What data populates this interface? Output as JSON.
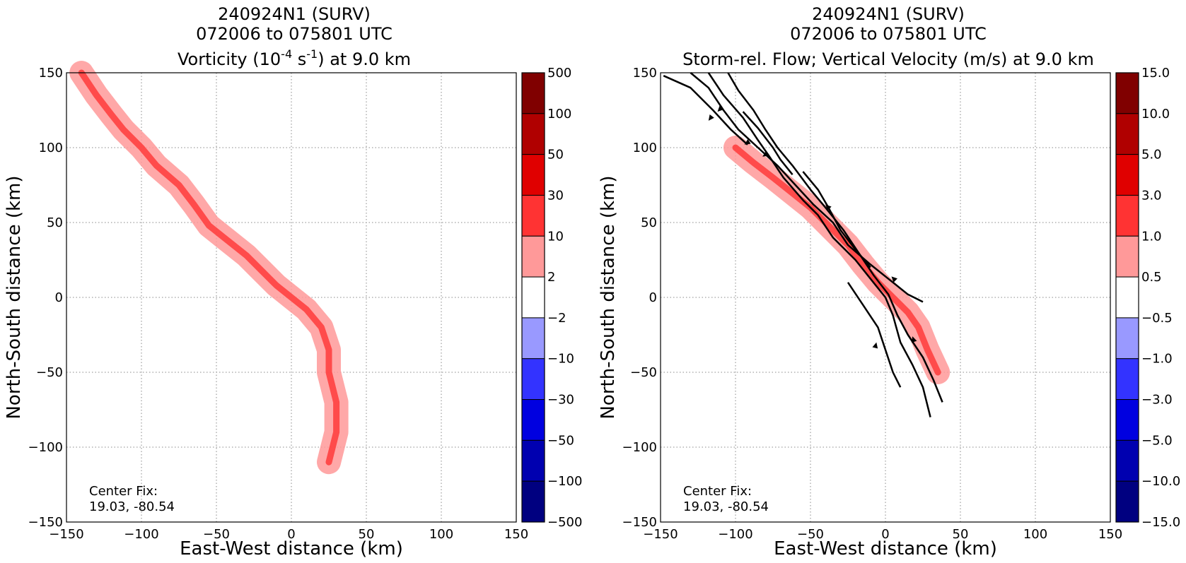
{
  "chart_data": [
    {
      "type": "heatmap",
      "title_lines": [
        "240924N1 (SURV)",
        "072006 to 075801 UTC"
      ],
      "title_var": {
        "prefix": "Vorticity (10",
        "exp1": "-4",
        "mid": " s",
        "exp2": "-1",
        "suffix": ") at 9.0 km"
      },
      "xlabel": "East-West distance (km)",
      "ylabel": "North-South distance (km)",
      "xlim": [
        -150,
        150
      ],
      "ylim": [
        -150,
        150
      ],
      "xticks": [
        "−150",
        "−100",
        "−50",
        "0",
        "50",
        "100",
        "150"
      ],
      "yticks": [
        "−150",
        "−100",
        "−50",
        "0",
        "50",
        "100",
        "150"
      ],
      "grid": true,
      "annotation": [
        "Center Fix:",
        "19.03, -80.54"
      ],
      "colorbar": {
        "labels": [
          "500",
          "100",
          "50",
          "30",
          "10",
          "2",
          "−2",
          "−10",
          "−30",
          "−50",
          "−100",
          "−500"
        ],
        "colors": [
          "#800000",
          "#b00000",
          "#e00000",
          "#ff3333",
          "#ff9999",
          "#ffffff",
          "#9999ff",
          "#3333ff",
          "#0000e0",
          "#0000b0",
          "#000080"
        ]
      },
      "features": [
        {
          "level": 1,
          "points": [
            [
              -140,
              150
            ],
            [
              -130,
              135
            ],
            [
              -120,
              122
            ],
            [
              -112,
              112
            ],
            [
              -100,
              100
            ],
            [
              -90,
              88
            ],
            [
              -75,
              75
            ],
            [
              -65,
              62
            ],
            [
              -55,
              48
            ],
            [
              -45,
              40
            ],
            [
              -30,
              28
            ],
            [
              -20,
              18
            ],
            [
              -10,
              8
            ],
            [
              0,
              0
            ],
            [
              10,
              -8
            ],
            [
              20,
              -20
            ],
            [
              25,
              -35
            ],
            [
              25,
              -50
            ],
            [
              30,
              -70
            ],
            [
              30,
              -90
            ],
            [
              25,
              -110
            ]
          ]
        }
      ]
    },
    {
      "type": "heatmap",
      "title_lines": [
        "240924N1 (SURV)",
        "072006 to 075801 UTC"
      ],
      "title_var_text": "Storm-rel. Flow; Vertical Velocity (m/s) at 9.0 km",
      "xlabel": "East-West distance (km)",
      "ylabel": "North-South distance (km)",
      "xlim": [
        -150,
        150
      ],
      "ylim": [
        -150,
        150
      ],
      "xticks": [
        "−150",
        "−100",
        "−50",
        "0",
        "50",
        "100",
        "150"
      ],
      "yticks": [
        "−150",
        "−100",
        "−50",
        "0",
        "50",
        "100",
        "150"
      ],
      "grid": true,
      "annotation": [
        "Center Fix:",
        "19.03, -80.54"
      ],
      "colorbar": {
        "labels": [
          "15.0",
          "10.0",
          "5.0",
          "3.0",
          "1.0",
          "0.5",
          "−0.5",
          "−1.0",
          "−3.0",
          "−5.0",
          "−10.0",
          "−15.0"
        ],
        "colors": [
          "#800000",
          "#b00000",
          "#e00000",
          "#ff3333",
          "#ff9999",
          "#ffffff",
          "#9999ff",
          "#3333ff",
          "#0000e0",
          "#0000b0",
          "#000080"
        ]
      },
      "streamlines": [
        [
          [
            -148,
            148
          ],
          [
            -130,
            140
          ],
          [
            -115,
            125
          ],
          [
            -103,
            112
          ],
          [
            -92,
            102
          ]
        ],
        [
          [
            -130,
            150
          ],
          [
            -118,
            140
          ],
          [
            -108,
            125
          ],
          [
            -98,
            112
          ],
          [
            -85,
            100
          ],
          [
            -72,
            88
          ],
          [
            -60,
            75
          ],
          [
            -48,
            62
          ],
          [
            -35,
            50
          ],
          [
            -25,
            35
          ],
          [
            -10,
            22
          ],
          [
            5,
            10
          ],
          [
            15,
            2
          ],
          [
            25,
            -3
          ]
        ],
        [
          [
            -118,
            150
          ],
          [
            -108,
            135
          ],
          [
            -95,
            120
          ],
          [
            -85,
            105
          ],
          [
            -78,
            95
          ],
          [
            -68,
            80
          ],
          [
            -55,
            65
          ],
          [
            -45,
            55
          ],
          [
            -35,
            40
          ],
          [
            -20,
            25
          ],
          [
            -8,
            10
          ],
          [
            0,
            0
          ],
          [
            5,
            -12
          ],
          [
            10,
            -30
          ],
          [
            18,
            -45
          ],
          [
            25,
            -60
          ],
          [
            30,
            -80
          ]
        ],
        [
          [
            -105,
            150
          ],
          [
            -98,
            138
          ],
          [
            -88,
            125
          ],
          [
            -80,
            112
          ],
          [
            -72,
            100
          ],
          [
            -62,
            88
          ],
          [
            -50,
            72
          ],
          [
            -40,
            60
          ],
          [
            -28,
            45
          ],
          [
            -18,
            30
          ],
          [
            -8,
            15
          ],
          [
            2,
            2
          ],
          [
            8,
            -12
          ],
          [
            15,
            -25
          ],
          [
            25,
            -40
          ],
          [
            32,
            -55
          ],
          [
            38,
            -70
          ]
        ],
        [
          [
            -95,
            124
          ],
          [
            -85,
            113
          ],
          [
            -75,
            100
          ],
          [
            -70,
            92
          ],
          [
            -62,
            82
          ]
        ],
        [
          [
            -55,
            84
          ],
          [
            -45,
            72
          ],
          [
            -38,
            60
          ],
          [
            -30,
            45
          ],
          [
            -20,
            32
          ],
          [
            -10,
            20
          ]
        ],
        [
          [
            -25,
            10
          ],
          [
            -15,
            -5
          ],
          [
            -5,
            -20
          ],
          [
            0,
            -35
          ],
          [
            5,
            -50
          ],
          [
            10,
            -60
          ]
        ]
      ],
      "arrows": [
        [
          -112,
          126,
          -118,
          118
        ],
        [
          -106,
          130,
          -112,
          124
        ],
        [
          -88,
          106,
          -94,
          102
        ],
        [
          -76,
          98,
          -82,
          94
        ],
        [
          -36,
          58,
          -40,
          62
        ],
        [
          -8,
          -38,
          -6,
          -30
        ],
        [
          20,
          -32,
          18,
          -26
        ],
        [
          8,
          10,
          4,
          14
        ]
      ],
      "features": [
        {
          "level": 1,
          "points": [
            [
              -100,
              100
            ],
            [
              -88,
              90
            ],
            [
              -75,
              80
            ],
            [
              -65,
              72
            ],
            [
              -50,
              60
            ],
            [
              -38,
              48
            ],
            [
              -25,
              35
            ],
            [
              -15,
              22
            ],
            [
              -5,
              10
            ],
            [
              5,
              0
            ],
            [
              15,
              -10
            ],
            [
              22,
              -20
            ],
            [
              28,
              -35
            ],
            [
              35,
              -50
            ]
          ]
        }
      ]
    }
  ]
}
